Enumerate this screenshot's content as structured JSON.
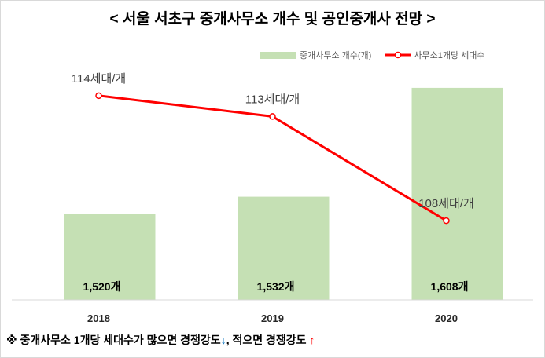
{
  "chart_data": {
    "type": "bar",
    "title": "< 서울 서초구 중개사무소 개수 및 공인중개사 전망 >",
    "categories": [
      "2018",
      "2019",
      "2020"
    ],
    "series": [
      {
        "name": "중개사무소 개수(개)",
        "type": "bar",
        "values": [
          1520,
          1532,
          1608
        ],
        "labels": [
          "1,520개",
          "1,532개",
          "1,608개"
        ],
        "color": "#c5e0b4"
      },
      {
        "name": "사무소1개당 세대수",
        "type": "line",
        "values": [
          114,
          113,
          108
        ],
        "labels": [
          "114세대/개",
          "113세대/개",
          "108세대/개"
        ],
        "color": "#ff0000"
      }
    ],
    "xlabel": "",
    "ylabel": "",
    "ylim": [
      1460,
      1620
    ],
    "y2lim": [
      104.2,
      115.2
    ],
    "grid": false,
    "legend": "top-right"
  },
  "note": {
    "text_1": "※ 중개사무소 1개당 세대수가 많으면 경쟁강도",
    "arrow_down": "↓",
    "text_2": ", 적으면 경쟁강도 ",
    "arrow_up": "↑",
    "arrow_down_color": "#0070c0",
    "arrow_up_color": "#ff0000"
  }
}
